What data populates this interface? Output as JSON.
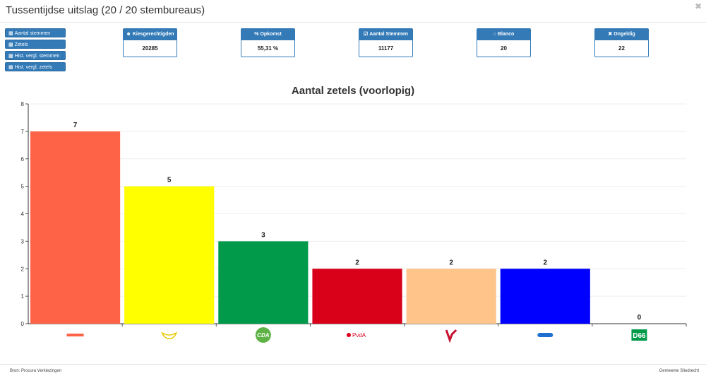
{
  "window": {
    "title": "Tussentijdse uitslag (20 / 20 stembureaus)"
  },
  "nav": [
    {
      "label": "Aantal stemmen",
      "icon": "bar-chart-icon"
    },
    {
      "label": "Zetels",
      "icon": "bar-chart-icon"
    },
    {
      "label": "Hist. vergl. stemmen",
      "icon": "bar-chart-icon"
    },
    {
      "label": "Hist. vergl. zetels",
      "icon": "bar-chart-icon"
    }
  ],
  "stats": [
    {
      "label": "Kiesgerechtigden",
      "value": "20285",
      "icon": "users-icon"
    },
    {
      "label": "Opkomst",
      "value": "55,31 %",
      "icon": "percent-icon"
    },
    {
      "label": "Aantal Stemmen",
      "value": "11177",
      "icon": "check-square-icon"
    },
    {
      "label": "Blanco",
      "value": "20",
      "icon": "circle-icon"
    },
    {
      "label": "Ongeldig",
      "value": "22",
      "icon": "times-icon"
    }
  ],
  "chart_data": {
    "type": "bar",
    "title": "Aantal zetels (voorlopig)",
    "ylim": [
      0,
      8
    ],
    "yticks": [
      "0",
      "1",
      "2",
      "3",
      "4",
      "5",
      "6",
      "7",
      "8"
    ],
    "grid": true,
    "values": [
      7,
      5,
      3,
      2,
      2,
      2,
      0
    ],
    "value_labels": [
      "7",
      "5",
      "3",
      "2",
      "2",
      "2",
      "0"
    ],
    "colors": [
      "#ff6347",
      "#ffff00",
      "#009a4a",
      "#d9001a",
      "#ffc48a",
      "#0000ff",
      "#009a4a"
    ],
    "categories": [
      "",
      "",
      "CDA",
      "PvdA",
      "",
      "",
      "D66"
    ],
    "category_logos": [
      "party-logo-1",
      "party-logo-2",
      "cda-logo",
      "pvda-logo",
      "party-logo-5",
      "party-logo-6",
      "d66-logo"
    ]
  },
  "footer": {
    "source": "Bron: Procura Verkiezingen",
    "municipality": "Gemeente Sliedrecht"
  }
}
